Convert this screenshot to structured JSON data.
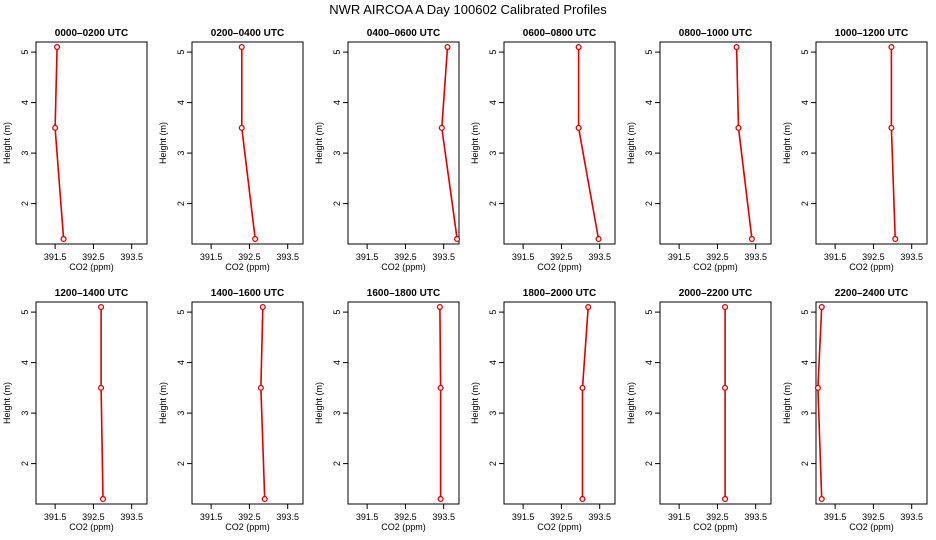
{
  "figure": {
    "title": "NWR AIRCOA A  Day 100602  Calibrated Profiles"
  },
  "colors": {
    "series": "#dd0000",
    "axis": "#000000"
  },
  "chart_data": [
    {
      "type": "line",
      "title": "0000–0200 UTC",
      "xlabel": "CO2 (ppm)",
      "ylabel": "Height (m)",
      "xlim": [
        391.0,
        393.9
      ],
      "ylim": [
        1.2,
        5.2
      ],
      "xticks": [
        "391.5",
        "392.5",
        "393.5"
      ],
      "yticks": [
        "2",
        "3",
        "4",
        "5"
      ],
      "x": [
        391.55,
        391.5,
        391.72
      ],
      "y": [
        5.1,
        3.5,
        1.3
      ]
    },
    {
      "type": "line",
      "title": "0200–0400 UTC",
      "xlabel": "CO2 (ppm)",
      "ylabel": "Height (m)",
      "xlim": [
        391.0,
        393.9
      ],
      "ylim": [
        1.2,
        5.2
      ],
      "xticks": [
        "391.5",
        "392.5",
        "393.5"
      ],
      "yticks": [
        "2",
        "3",
        "4",
        "5"
      ],
      "x": [
        392.3,
        392.3,
        392.65
      ],
      "y": [
        5.1,
        3.5,
        1.3
      ]
    },
    {
      "type": "line",
      "title": "0400–0600 UTC",
      "xlabel": "CO2 (ppm)",
      "ylabel": "Height (m)",
      "xlim": [
        391.0,
        393.9
      ],
      "ylim": [
        1.2,
        5.2
      ],
      "xticks": [
        "391.5",
        "392.5",
        "393.5"
      ],
      "yticks": [
        "2",
        "3",
        "4",
        "5"
      ],
      "x": [
        393.6,
        393.45,
        393.85
      ],
      "y": [
        5.1,
        3.5,
        1.3
      ]
    },
    {
      "type": "line",
      "title": "0600–0800 UTC",
      "xlabel": "CO2 (ppm)",
      "ylabel": "Height (m)",
      "xlim": [
        391.0,
        393.9
      ],
      "ylim": [
        1.2,
        5.2
      ],
      "xticks": [
        "391.5",
        "392.5",
        "393.5"
      ],
      "yticks": [
        "2",
        "3",
        "4",
        "5"
      ],
      "x": [
        392.95,
        392.95,
        393.47
      ],
      "y": [
        5.1,
        3.5,
        1.3
      ]
    },
    {
      "type": "line",
      "title": "0800–1000 UTC",
      "xlabel": "CO2 (ppm)",
      "ylabel": "Height (m)",
      "xlim": [
        391.0,
        393.9
      ],
      "ylim": [
        1.2,
        5.2
      ],
      "xticks": [
        "391.5",
        "392.5",
        "393.5"
      ],
      "yticks": [
        "2",
        "3",
        "4",
        "5"
      ],
      "x": [
        393.0,
        393.05,
        393.4
      ],
      "y": [
        5.1,
        3.5,
        1.3
      ]
    },
    {
      "type": "line",
      "title": "1000–1200 UTC",
      "xlabel": "CO2 (ppm)",
      "ylabel": "Height (m)",
      "xlim": [
        391.0,
        393.9
      ],
      "ylim": [
        1.2,
        5.2
      ],
      "xticks": [
        "391.5",
        "392.5",
        "393.5"
      ],
      "yticks": [
        "2",
        "3",
        "4",
        "5"
      ],
      "x": [
        392.97,
        392.97,
        393.07
      ],
      "y": [
        5.1,
        3.5,
        1.3
      ]
    },
    {
      "type": "line",
      "title": "1200–1400 UTC",
      "xlabel": "CO2 (ppm)",
      "ylabel": "Height (m)",
      "xlim": [
        391.0,
        393.9
      ],
      "ylim": [
        1.2,
        5.2
      ],
      "xticks": [
        "391.5",
        "392.5",
        "393.5"
      ],
      "yticks": [
        "2",
        "3",
        "4",
        "5"
      ],
      "x": [
        392.7,
        392.7,
        392.75
      ],
      "y": [
        5.1,
        3.5,
        1.3
      ]
    },
    {
      "type": "line",
      "title": "1400–1600 UTC",
      "xlabel": "CO2 (ppm)",
      "ylabel": "Height (m)",
      "xlim": [
        391.0,
        393.9
      ],
      "ylim": [
        1.2,
        5.2
      ],
      "xticks": [
        "391.5",
        "392.5",
        "393.5"
      ],
      "yticks": [
        "2",
        "3",
        "4",
        "5"
      ],
      "x": [
        392.85,
        392.8,
        392.9
      ],
      "y": [
        5.1,
        3.5,
        1.3
      ]
    },
    {
      "type": "line",
      "title": "1600–1800 UTC",
      "xlabel": "CO2 (ppm)",
      "ylabel": "Height (m)",
      "xlim": [
        391.0,
        393.9
      ],
      "ylim": [
        1.2,
        5.2
      ],
      "xticks": [
        "391.5",
        "392.5",
        "393.5"
      ],
      "yticks": [
        "2",
        "3",
        "4",
        "5"
      ],
      "x": [
        393.4,
        393.42,
        393.42
      ],
      "y": [
        5.1,
        3.5,
        1.3
      ]
    },
    {
      "type": "line",
      "title": "1800–2000 UTC",
      "xlabel": "CO2 (ppm)",
      "ylabel": "Height (m)",
      "xlim": [
        391.0,
        393.9
      ],
      "ylim": [
        1.2,
        5.2
      ],
      "xticks": [
        "391.5",
        "392.5",
        "393.5"
      ],
      "yticks": [
        "2",
        "3",
        "4",
        "5"
      ],
      "x": [
        393.2,
        393.05,
        393.05
      ],
      "y": [
        5.1,
        3.5,
        1.3
      ]
    },
    {
      "type": "line",
      "title": "2000–2200 UTC",
      "xlabel": "CO2 (ppm)",
      "ylabel": "Height (m)",
      "xlim": [
        391.0,
        393.9
      ],
      "ylim": [
        1.2,
        5.2
      ],
      "xticks": [
        "391.5",
        "392.5",
        "393.5"
      ],
      "yticks": [
        "2",
        "3",
        "4",
        "5"
      ],
      "x": [
        392.7,
        392.7,
        392.7
      ],
      "y": [
        5.1,
        3.5,
        1.3
      ]
    },
    {
      "type": "line",
      "title": "2200–2400 UTC",
      "xlabel": "CO2 (ppm)",
      "ylabel": "Height (m)",
      "xlim": [
        391.0,
        393.9
      ],
      "ylim": [
        1.2,
        5.2
      ],
      "xticks": [
        "391.5",
        "392.5",
        "393.5"
      ],
      "yticks": [
        "2",
        "3",
        "4",
        "5"
      ],
      "x": [
        391.15,
        391.05,
        391.15
      ],
      "y": [
        5.1,
        3.5,
        1.3
      ]
    }
  ]
}
